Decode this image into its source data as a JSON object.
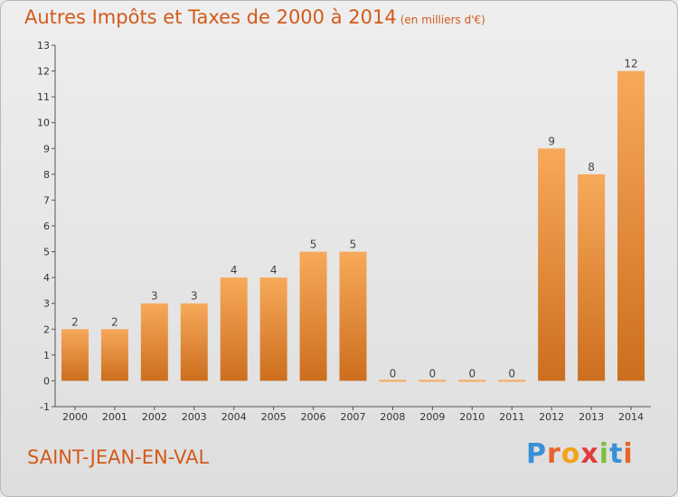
{
  "header": {
    "title": "Autres Impôts et Taxes de 2000 à 2014",
    "unit": "(en milliers d'€)"
  },
  "footer": {
    "commune": "SAINT-JEAN-EN-VAL",
    "brand": "Proxiti"
  },
  "colors": {
    "bar_top": "#f7a95a",
    "bar_bottom": "#cc6e1e",
    "title": "#d35a1b"
  },
  "chart_data": {
    "type": "bar",
    "title": "Autres Impôts et Taxes de 2000 à 2014",
    "subtitle": "(en milliers d'€)",
    "categories": [
      "2000",
      "2001",
      "2002",
      "2003",
      "2004",
      "2005",
      "2006",
      "2007",
      "2008",
      "2009",
      "2010",
      "2011",
      "2012",
      "2013",
      "2014"
    ],
    "values": [
      2,
      2,
      3,
      3,
      4,
      4,
      5,
      5,
      0,
      0,
      0,
      0,
      9,
      8,
      12
    ],
    "ylim": [
      -1,
      13
    ],
    "yticks": [
      -1,
      0,
      1,
      2,
      3,
      4,
      5,
      6,
      7,
      8,
      9,
      10,
      11,
      12,
      13
    ],
    "grid": false,
    "legend": "none"
  }
}
